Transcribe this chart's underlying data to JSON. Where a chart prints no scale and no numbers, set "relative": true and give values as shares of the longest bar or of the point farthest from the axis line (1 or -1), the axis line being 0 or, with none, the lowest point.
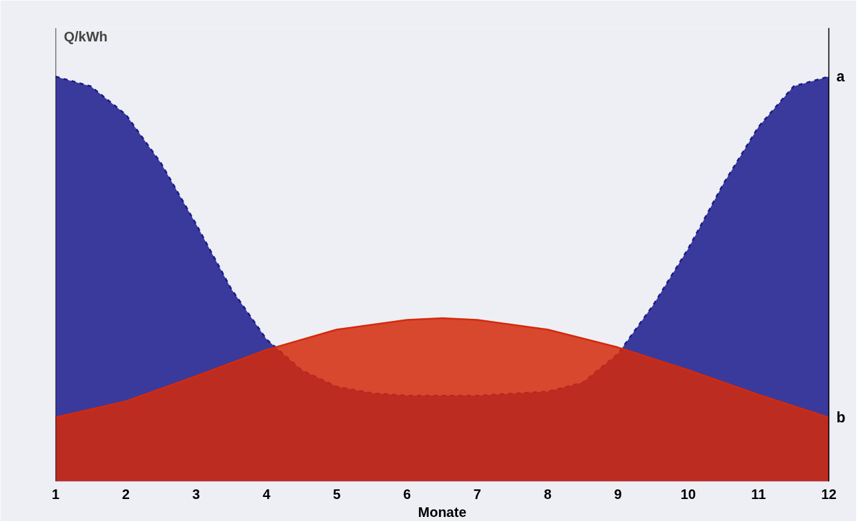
{
  "chart_data": {
    "type": "area",
    "relative": true,
    "ylabel": "Q/kWh",
    "xlabel": "Monate",
    "xlim": [
      1,
      12
    ],
    "xticks": [
      1,
      2,
      3,
      4,
      5,
      6,
      7,
      8,
      9,
      10,
      11,
      12
    ],
    "grid": false,
    "series": [
      {
        "name": "a",
        "color": "#1a1a8c",
        "line_style": "dashed",
        "x": [
          1,
          1.5,
          2,
          2.5,
          3,
          3.5,
          4,
          4.5,
          5,
          5.5,
          6,
          7,
          8,
          8.5,
          9,
          9.5,
          10,
          10.5,
          11,
          11.5,
          12
        ],
        "values": [
          1.0,
          0.976,
          0.906,
          0.786,
          0.635,
          0.475,
          0.351,
          0.275,
          0.234,
          0.218,
          0.212,
          0.212,
          0.222,
          0.244,
          0.315,
          0.435,
          0.575,
          0.735,
          0.876,
          0.976,
          1.0
        ]
      },
      {
        "name": "b",
        "color": "#d42a0c",
        "line_style": "solid",
        "x": [
          1,
          2,
          3,
          4,
          5,
          6,
          6.5,
          7,
          8,
          9,
          10,
          11,
          12
        ],
        "values": [
          0.158,
          0.198,
          0.26,
          0.325,
          0.375,
          0.399,
          0.403,
          0.399,
          0.375,
          0.331,
          0.275,
          0.214,
          0.158
        ]
      }
    ]
  }
}
